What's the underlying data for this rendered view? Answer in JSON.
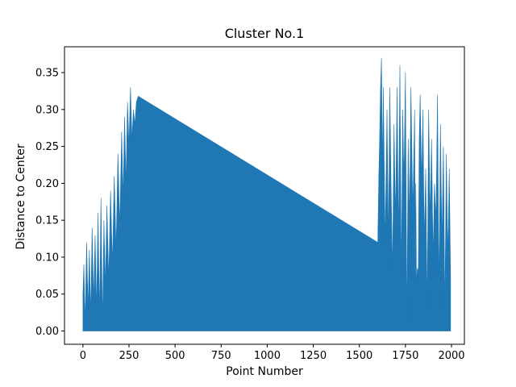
{
  "chart_data": {
    "type": "area",
    "title": "Cluster No.1",
    "xlabel": "Point Number",
    "ylabel": "Distance to Center",
    "xlim": [
      -100,
      2070
    ],
    "ylim": [
      -0.018,
      0.385
    ],
    "xticks": [
      0,
      250,
      500,
      750,
      1000,
      1250,
      1500,
      1750,
      2000
    ],
    "xtick_labels": [
      "0",
      "250",
      "500",
      "750",
      "1000",
      "1250",
      "1500",
      "1750",
      "2000"
    ],
    "yticks": [
      0.0,
      0.05,
      0.1,
      0.15,
      0.2,
      0.25,
      0.3,
      0.35
    ],
    "ytick_labels": [
      "0.00",
      "0.05",
      "0.10",
      "0.15",
      "0.20",
      "0.25",
      "0.30",
      "0.35"
    ],
    "grid": false,
    "legend": "none",
    "series": [
      {
        "color": "#1f77b4",
        "baseline": 0,
        "x": [
          0,
          5,
          12,
          20,
          28,
          35,
          42,
          50,
          58,
          66,
          74,
          82,
          90,
          98,
          106,
          114,
          122,
          130,
          140,
          150,
          160,
          170,
          180,
          190,
          200,
          210,
          218,
          226,
          234,
          242,
          250,
          258,
          266,
          274,
          282,
          290,
          300,
          1600,
          1605,
          1610,
          1615,
          1620,
          1625,
          1630,
          1640,
          1650,
          1658,
          1665,
          1672,
          1680,
          1688,
          1696,
          1705,
          1712,
          1720,
          1728,
          1735,
          1742,
          1750,
          1758,
          1765,
          1772,
          1780,
          1790,
          1800,
          1803,
          1806,
          1810,
          1815,
          1820,
          1825,
          1830,
          1838,
          1845,
          1852,
          1860,
          1868,
          1876,
          1884,
          1892,
          1900,
          1908,
          1916,
          1924,
          1932,
          1940,
          1948,
          1956,
          1964,
          1972,
          1980,
          1988,
          1995
        ],
        "y": [
          0.05,
          0.09,
          0.01,
          0.12,
          0.03,
          0.11,
          0.02,
          0.14,
          0.04,
          0.13,
          0.03,
          0.16,
          0.02,
          0.18,
          0.01,
          0.15,
          0.06,
          0.17,
          0.07,
          0.19,
          0.09,
          0.21,
          0.11,
          0.24,
          0.14,
          0.27,
          0.18,
          0.29,
          0.2,
          0.31,
          0.25,
          0.33,
          0.26,
          0.3,
          0.28,
          0.31,
          0.318,
          0.12,
          0.2,
          0.26,
          0.33,
          0.37,
          0.22,
          0.33,
          0.12,
          0.3,
          0.12,
          0.33,
          0.2,
          0.08,
          0.28,
          0.15,
          0.33,
          0.12,
          0.36,
          0.07,
          0.3,
          0.2,
          0.35,
          0.01,
          0.26,
          0.15,
          0.33,
          0.16,
          0.3,
          0.1,
          0.2,
          0.065,
          0.085,
          0.08,
          0.26,
          0.32,
          0.2,
          0.3,
          0.12,
          0.22,
          0.03,
          0.3,
          0.15,
          0.26,
          0.1,
          0.2,
          0.15,
          0.32,
          0.05,
          0.28,
          0.12,
          0.25,
          0.03,
          0.24,
          0.1,
          0.22,
          0.07
        ]
      }
    ]
  }
}
